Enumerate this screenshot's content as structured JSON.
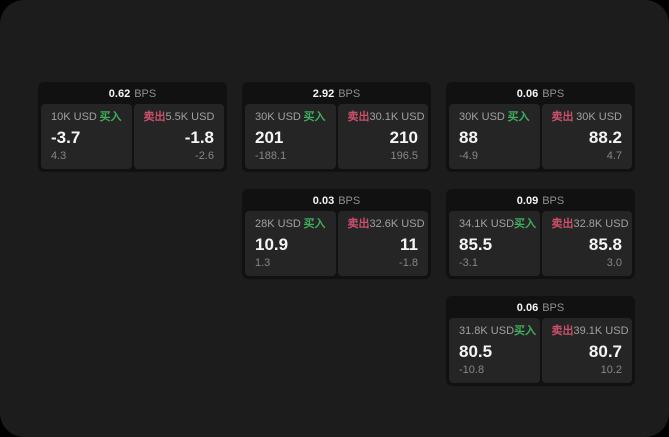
{
  "colors": {
    "canvas": "#000000",
    "screen_bg": "#1c1c1c",
    "card_bg": "#111111",
    "panel_bg": "#252525",
    "buy_green": "#3fae5c",
    "sell_rose": "#c9506a"
  },
  "labels": {
    "bps_suffix": "BPS",
    "buy": "买入",
    "sell": "卖出"
  },
  "cards": [
    {
      "bps": "0.62",
      "grid": {
        "col": 1,
        "row": 1
      },
      "buy": {
        "amount": "10K USD",
        "value": "-3.7",
        "sub": "4.3"
      },
      "sell": {
        "amount": "5.5K USD",
        "value": "-1.8",
        "sub": "-2.6"
      }
    },
    {
      "bps": "2.92",
      "grid": {
        "col": 2,
        "row": 1
      },
      "buy": {
        "amount": "30K USD",
        "value": "201",
        "sub": "-188.1"
      },
      "sell": {
        "amount": "30.1K USD",
        "value": "210",
        "sub": "196.5"
      }
    },
    {
      "bps": "0.06",
      "grid": {
        "col": 3,
        "row": 1
      },
      "buy": {
        "amount": "30K USD",
        "value": "88",
        "sub": "-4.9"
      },
      "sell": {
        "amount": "30K USD",
        "value": "88.2",
        "sub": "4.7"
      }
    },
    {
      "bps": "0.03",
      "grid": {
        "col": 2,
        "row": 2
      },
      "buy": {
        "amount": "28K USD",
        "value": "10.9",
        "sub": "1.3"
      },
      "sell": {
        "amount": "32.6K USD",
        "value": "11",
        "sub": "-1.8"
      }
    },
    {
      "bps": "0.09",
      "grid": {
        "col": 3,
        "row": 2
      },
      "buy": {
        "amount": "34.1K USD",
        "value": "85.5",
        "sub": "-3.1"
      },
      "sell": {
        "amount": "32.8K USD",
        "value": "85.8",
        "sub": "3.0"
      }
    },
    {
      "bps": "0.06",
      "grid": {
        "col": 3,
        "row": 3
      },
      "buy": {
        "amount": "31.8K USD",
        "value": "80.5",
        "sub": "-10.8"
      },
      "sell": {
        "amount": "39.1K USD",
        "value": "80.7",
        "sub": "10.2"
      }
    }
  ]
}
